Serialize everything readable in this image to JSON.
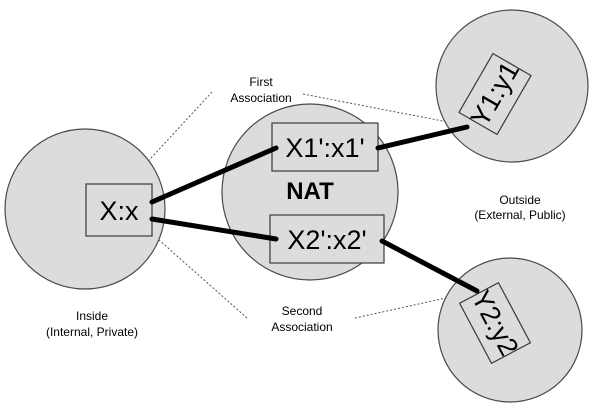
{
  "nat": {
    "label": "NAT",
    "mapping_first": "X1':x1'",
    "mapping_second": "X2':x2'"
  },
  "inside": {
    "endpoint": "X:x",
    "label_line1": "Inside",
    "label_line2": "(Internal, Private)"
  },
  "outside": {
    "label_line1": "Outside",
    "label_line2": "(External, Public)"
  },
  "remote_first": {
    "endpoint": "Y1:y1"
  },
  "remote_second": {
    "endpoint": "Y2:y2"
  },
  "associations": {
    "first_line1": "First",
    "first_line2": "Association",
    "second_line1": "Second",
    "second_line2": "Association"
  }
}
